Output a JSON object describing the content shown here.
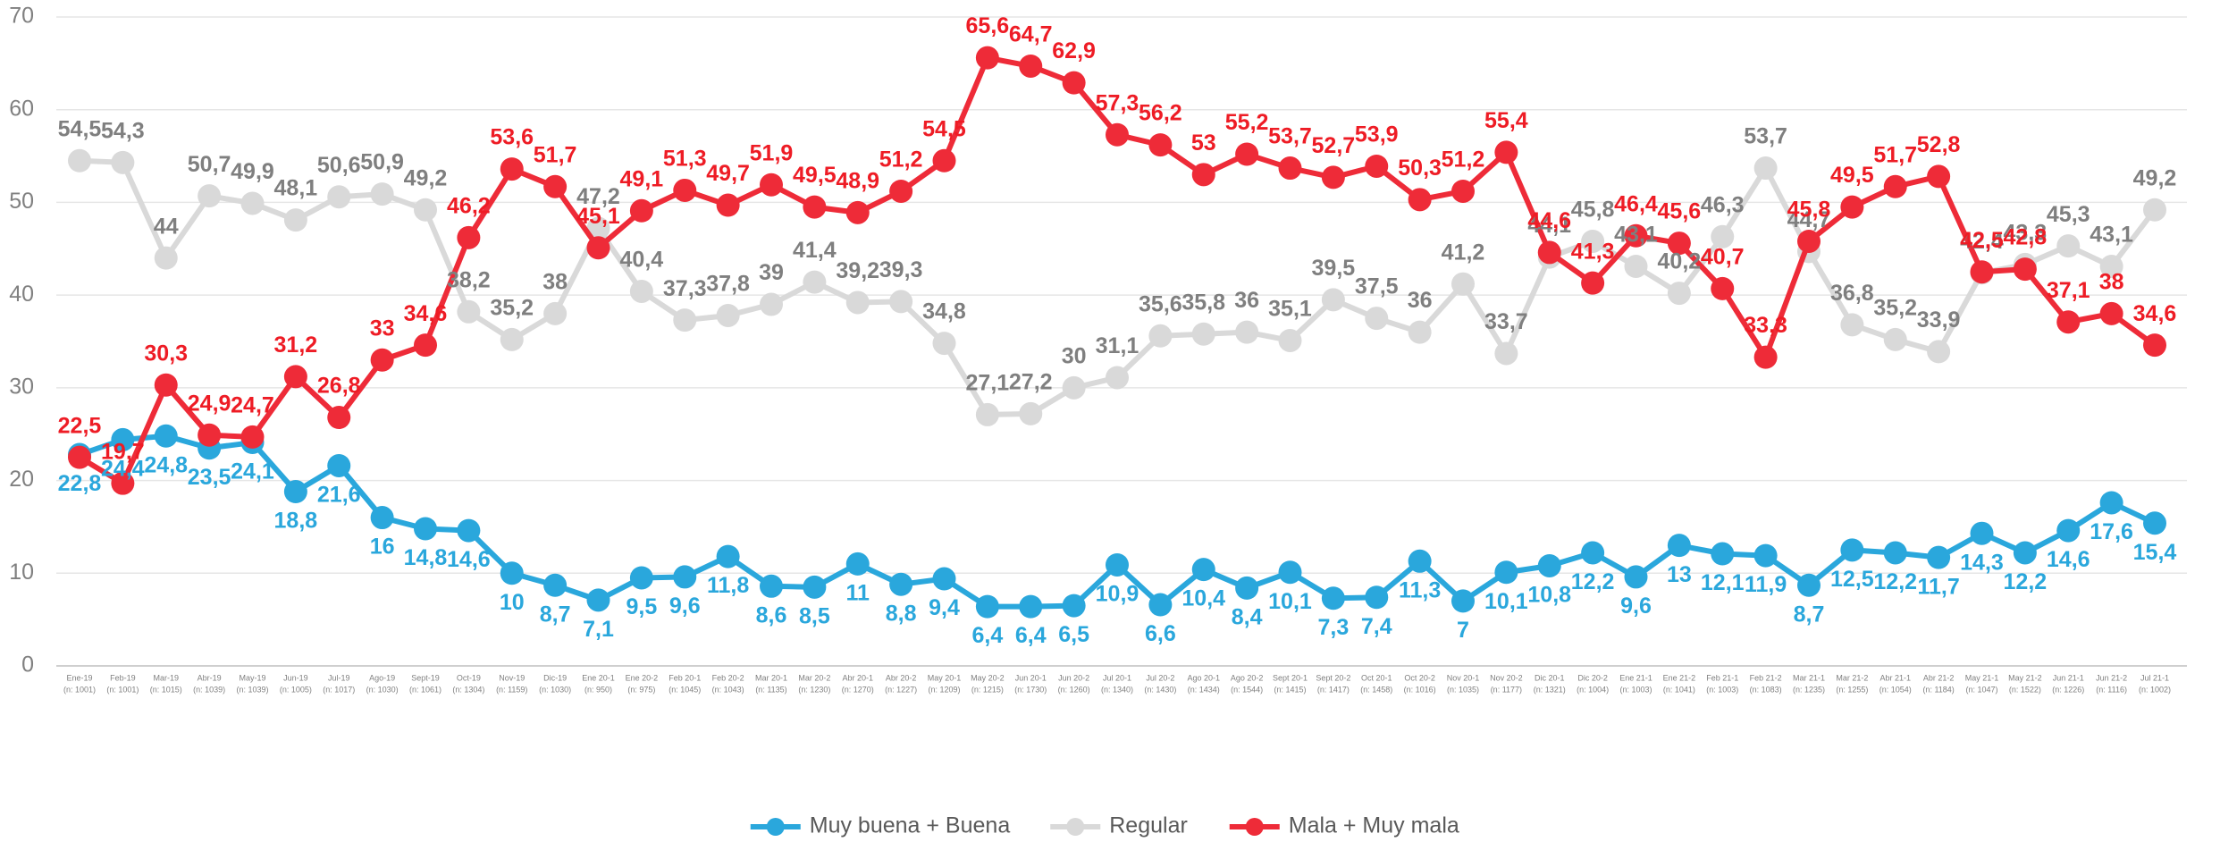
{
  "chart_data": {
    "type": "line",
    "categories": [
      [
        "Ene-19",
        "(n: 1001)"
      ],
      [
        "Feb-19",
        "(n: 1001)"
      ],
      [
        "Mar-19",
        "(n: 1015)"
      ],
      [
        "Abr-19",
        "(n: 1039)"
      ],
      [
        "May-19",
        "(n: 1039)"
      ],
      [
        "Jun-19",
        "(n: 1005)"
      ],
      [
        "Jul-19",
        "(n: 1017)"
      ],
      [
        "Ago-19",
        "(n: 1030)"
      ],
      [
        "Sept-19",
        "(n: 1061)"
      ],
      [
        "Oct-19",
        "(n: 1304)"
      ],
      [
        "Nov-19",
        "(n: 1159)"
      ],
      [
        "Dic-19",
        "(n: 1030)"
      ],
      [
        "Ene 20-1",
        "(n: 950)"
      ],
      [
        "Ene 20-2",
        "(n: 975)"
      ],
      [
        "Feb 20-1",
        "(n: 1045)"
      ],
      [
        "Feb 20-2",
        "(n: 1043)"
      ],
      [
        "Mar 20-1",
        "(n: 1135)"
      ],
      [
        "Mar 20-2",
        "(n: 1230)"
      ],
      [
        "Abr 20-1",
        "(n: 1270)"
      ],
      [
        "Abr 20-2",
        "(n: 1227)"
      ],
      [
        "May 20-1",
        "(n: 1209)"
      ],
      [
        "May 20-2",
        "(n: 1215)"
      ],
      [
        "Jun 20-1",
        "(n: 1730)"
      ],
      [
        "Jun 20-2",
        "(n: 1260)"
      ],
      [
        "Jul 20-1",
        "(n: 1340)"
      ],
      [
        "Jul 20-2",
        "(n: 1430)"
      ],
      [
        "Ago 20-1",
        "(n: 1434)"
      ],
      [
        "Ago 20-2",
        "(n: 1544)"
      ],
      [
        "Sept 20-1",
        "(n: 1415)"
      ],
      [
        "Sept 20-2",
        "(n: 1417)"
      ],
      [
        "Oct 20-1",
        "(n: 1458)"
      ],
      [
        "Oct 20-2",
        "(n: 1016)"
      ],
      [
        "Nov 20-1",
        "(n: 1035)"
      ],
      [
        "Nov 20-2",
        "(n: 1177)"
      ],
      [
        "Dic 20-1",
        "(n: 1321)"
      ],
      [
        "Dic 20-2",
        "(n: 1004)"
      ],
      [
        "Ene 21-1",
        "(n: 1003)"
      ],
      [
        "Ene 21-2",
        "(n: 1041)"
      ],
      [
        "Feb 21-1",
        "(n: 1003)"
      ],
      [
        "Feb 21-2",
        "(n: 1083)"
      ],
      [
        "Mar 21-1",
        "(n: 1235)"
      ],
      [
        "Mar 21-2",
        "(n: 1255)"
      ],
      [
        "Abr 21-1",
        "(n: 1054)"
      ],
      [
        "Abr 21-2",
        "(n: 1184)"
      ],
      [
        "May 21-1",
        "(n: 1047)"
      ],
      [
        "May 21-2",
        "(n: 1522)"
      ],
      [
        "Jun 21-1",
        "(n: 1226)"
      ],
      [
        "Jun 21-2",
        "(n: 1116)"
      ],
      [
        "Jul 21-1",
        "(n: 1002)"
      ]
    ],
    "series": [
      {
        "name": "Muy buena + Buena",
        "color": "#2aa7dc",
        "label_color": "#2aa7dc",
        "label_position": "below",
        "values": [
          22.8,
          24.4,
          24.8,
          23.5,
          24.1,
          18.8,
          21.6,
          16,
          14.8,
          14.6,
          10,
          8.7,
          7.1,
          9.5,
          9.6,
          11.8,
          8.6,
          8.5,
          11,
          8.8,
          9.4,
          6.4,
          6.4,
          6.5,
          10.9,
          6.6,
          10.4,
          8.4,
          10.1,
          7.3,
          7.4,
          11.3,
          7,
          10.1,
          10.8,
          12.2,
          9.6,
          13,
          12.1,
          11.9,
          8.7,
          12.5,
          12.2,
          11.7,
          14.3,
          12.2,
          14.6,
          17.6,
          15.4
        ],
        "value_labels": [
          "22,8",
          "24,4",
          "24,8",
          "23,5",
          "24,1",
          "18,8",
          "21,6",
          "16",
          "14,8",
          "14,6",
          "10",
          "8,7",
          "7,1",
          "9,5",
          "9,6",
          "11,8",
          "8,6",
          "8,5",
          "11",
          "8,8",
          "9,4",
          "6,4",
          "6,4",
          "6,5",
          "10,9",
          "6,6",
          "10,4",
          "8,4",
          "10,1",
          "7,3",
          "7,4",
          "11,3",
          "7",
          "10,1",
          "10,8",
          "12,2",
          "9,6",
          "13",
          "12,1",
          "11,9",
          "8,7",
          "12,5",
          "12,2",
          "11,7",
          "14,3",
          "12,2",
          "14,6",
          "17,6",
          "15,4"
        ]
      },
      {
        "name": "Regular",
        "color": "#d9d9d9",
        "label_color": "#7f7f7f",
        "label_position": "above",
        "values": [
          54.5,
          54.3,
          44,
          50.7,
          49.9,
          48.1,
          50.6,
          50.9,
          49.2,
          38.2,
          35.2,
          38,
          47.2,
          40.4,
          37.3,
          37.8,
          39,
          41.4,
          39.2,
          39.3,
          34.8,
          27.1,
          27.2,
          30,
          31.1,
          35.6,
          35.8,
          36,
          35.1,
          39.5,
          37.5,
          36,
          41.2,
          33.7,
          44.1,
          45.8,
          43.1,
          40.2,
          46.3,
          53.7,
          44.7,
          36.8,
          35.2,
          33.9,
          42.4,
          43.3,
          45.3,
          43.1,
          49.2
        ],
        "value_labels": [
          "54,5",
          "54,3",
          "44",
          "50,7",
          "49,9",
          "48,1",
          "50,6",
          "50,9",
          "49,2",
          "38,2",
          "35,2",
          "38",
          "47,2",
          "40,4",
          "37,3",
          "37,8",
          "39",
          "41,4",
          "39,2",
          "39,3",
          "34,8",
          "27,1",
          "27,2",
          "30",
          "31,1",
          "35,6",
          "35,8",
          "36",
          "35,1",
          "39,5",
          "37,5",
          "36",
          "41,2",
          "33,7",
          "44,1",
          "45,8",
          "43,1",
          "40,2",
          "46,3",
          "53,7",
          "44,7",
          "36,8",
          "35,2",
          "33,9",
          "42,4",
          "43,3",
          "45,3",
          "43,1",
          "49,2"
        ]
      },
      {
        "name": "Mala + Muy mala",
        "color": "#ee2b38",
        "label_color": "#ee1c25",
        "label_position": "above",
        "values": [
          22.5,
          19.7,
          30.3,
          24.9,
          24.7,
          31.2,
          26.8,
          33,
          34.6,
          46.2,
          53.6,
          51.7,
          45.1,
          49.1,
          51.3,
          49.7,
          51.9,
          49.5,
          48.9,
          51.2,
          54.5,
          65.6,
          64.7,
          62.9,
          57.3,
          56.2,
          53,
          55.2,
          53.7,
          52.7,
          53.9,
          50.3,
          51.2,
          55.4,
          44.6,
          41.3,
          46.4,
          45.6,
          40.7,
          33.3,
          45.8,
          49.5,
          51.7,
          52.8,
          42.5,
          42.8,
          37.1,
          38,
          34.6
        ],
        "value_labels": [
          "22,5",
          "19,7",
          "30,3",
          "24,9",
          "24,7",
          "31,2",
          "26,8",
          "33",
          "34,6",
          "46,2",
          "53,6",
          "51,7",
          "45,1",
          "49,1",
          "51,3",
          "49,7",
          "51,9",
          "49,5",
          "48,9",
          "51,2",
          "54,5",
          "65,6",
          "64,7",
          "62,9",
          "57,3",
          "56,2",
          "53",
          "55,2",
          "53,7",
          "52,7",
          "53,9",
          "50,3",
          "51,2",
          "55,4",
          "44,6",
          "41,3",
          "46,4",
          "45,6",
          "40,7",
          "33,3",
          "45,8",
          "49,5",
          "51,7",
          "52,8",
          "42,5",
          "42,8",
          "37,1",
          "38",
          "34,6"
        ]
      }
    ],
    "ylim": [
      0,
      70
    ],
    "yticks": [
      0,
      10,
      20,
      30,
      40,
      50,
      60,
      70
    ],
    "grid": true,
    "legend": "bottom"
  }
}
